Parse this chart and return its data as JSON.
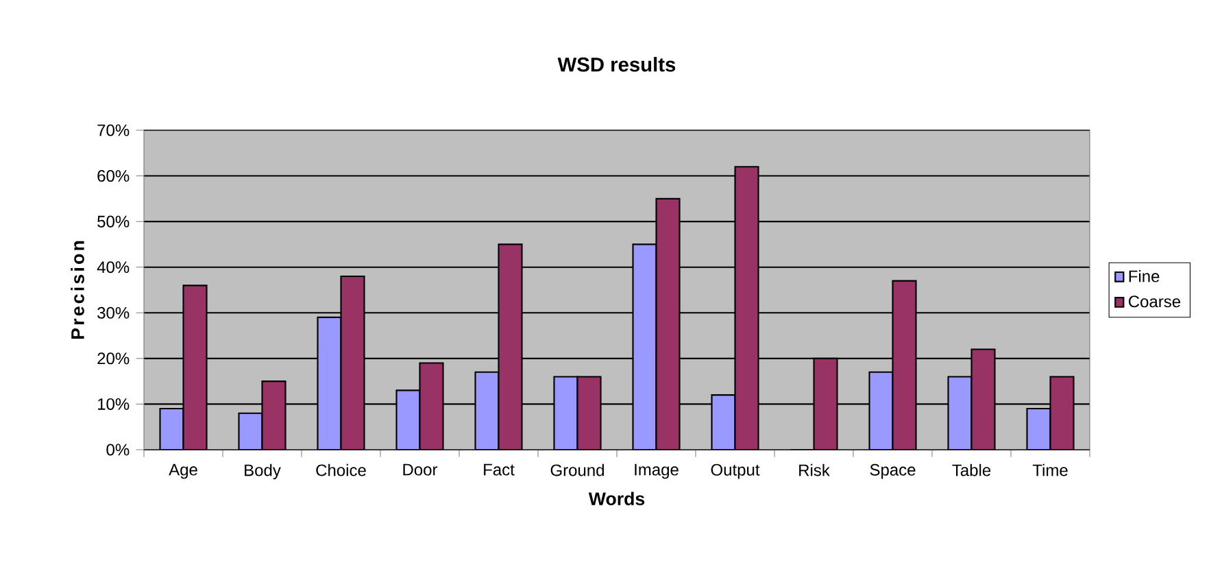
{
  "chart_data": {
    "type": "bar",
    "title": "WSD results",
    "xlabel": "Words",
    "ylabel": "Precision",
    "categories": [
      "Age",
      "Body",
      "Choice",
      "Door",
      "Fact",
      "Ground",
      "Image",
      "Output",
      "Risk",
      "Space",
      "Table",
      "Time"
    ],
    "series": [
      {
        "name": "Fine",
        "color": "#9999ff",
        "values": [
          9,
          8,
          29,
          13,
          17,
          16,
          45,
          12,
          0,
          17,
          16,
          9
        ]
      },
      {
        "name": "Coarse",
        "color": "#993366",
        "values": [
          36,
          15,
          38,
          19,
          45,
          16,
          55,
          62,
          20,
          37,
          22,
          16
        ]
      }
    ],
    "ylim": [
      0,
      70
    ],
    "yticks": [
      {
        "value": 0,
        "label": "0%"
      },
      {
        "value": 10,
        "label": "10%"
      },
      {
        "value": 20,
        "label": "20%"
      },
      {
        "value": 30,
        "label": "30%"
      },
      {
        "value": 40,
        "label": "40%"
      },
      {
        "value": 50,
        "label": "50%"
      },
      {
        "value": 60,
        "label": "60%"
      },
      {
        "value": 70,
        "label": "70%"
      }
    ],
    "grid": "y",
    "legend": "right"
  }
}
